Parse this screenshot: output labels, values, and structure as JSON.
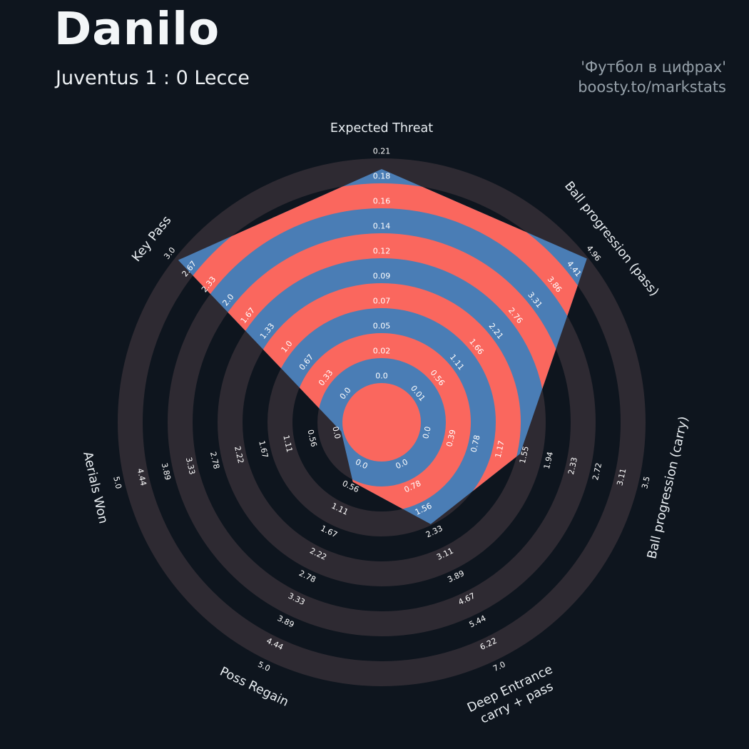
{
  "chart_data": {
    "type": "radar",
    "title": "Danilo",
    "subtitle": "Juventus 1 : 0 Lecce",
    "rings": 9,
    "legend": "none",
    "grid": "concentric-circles",
    "axes": [
      {
        "label": "Expected Threat",
        "max": 0.21,
        "value": 0.2,
        "ticks": [
          "0.0",
          "0.02",
          "0.05",
          "0.07",
          "0.09",
          "0.12",
          "0.14",
          "0.16",
          "0.18",
          "0.21"
        ]
      },
      {
        "label": "Ball progression (pass)",
        "max": 4.96,
        "value": 4.93,
        "ticks": [
          "0.01",
          "0.56",
          "1.11",
          "1.66",
          "2.21",
          "2.76",
          "3.31",
          "3.86",
          "4.41",
          "4.96"
        ]
      },
      {
        "label": "Ball progression (carry)",
        "max": 3.5,
        "value": 1.6,
        "ticks": [
          "0.0",
          "0.39",
          "0.78",
          "1.17",
          "1.55",
          "1.94",
          "2.33",
          "2.72",
          "3.11",
          "3.5"
        ]
      },
      {
        "label": "Deep Entrance\ncarry + pass",
        "max": 7.0,
        "value": 2.3,
        "ticks": [
          "0.0",
          "0.78",
          "1.56",
          "2.33",
          "3.11",
          "3.89",
          "4.67",
          "5.44",
          "6.22",
          "7.0"
        ]
      },
      {
        "label": "Poss Regain",
        "max": 5.0,
        "value": 0.6,
        "ticks": [
          "0.0",
          "0.56",
          "1.11",
          "1.67",
          "2.22",
          "2.78",
          "3.33",
          "3.89",
          "4.44",
          "5.0"
        ]
      },
      {
        "label": "Aerials Won",
        "max": 5.0,
        "value": 0.05,
        "ticks": [
          "0.0",
          "0.56",
          "1.11",
          "1.67",
          "2.22",
          "2.78",
          "3.33",
          "3.89",
          "4.44",
          "5.0"
        ]
      },
      {
        "label": "Key Pass",
        "max": 3.0,
        "value": 2.95,
        "ticks": [
          "0.0",
          "0.33",
          "0.67",
          "1.0",
          "1.33",
          "1.67",
          "2.0",
          "2.33",
          "2.67",
          "3.0"
        ]
      }
    ],
    "colors": {
      "background": "#0e151e",
      "ring_light": "#2e2a32",
      "radar_fill": "#4a7db5",
      "rings_inner": "#fa675e",
      "tick_text": "#ffffff",
      "axis_text": "#e9eef2"
    }
  },
  "watermark": {
    "line1": "'Футбол в цифрах'",
    "line2": "boosty.to/markstats"
  }
}
